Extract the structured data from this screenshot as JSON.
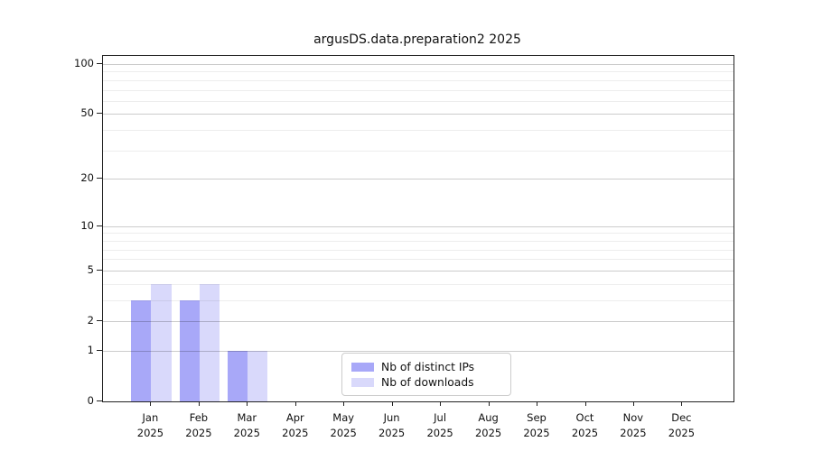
{
  "chart_data": {
    "type": "bar",
    "title": "argusDS.data.preparation2 2025",
    "x": {
      "months": [
        "Jan",
        "Feb",
        "Mar",
        "Apr",
        "May",
        "Jun",
        "Jul",
        "Aug",
        "Sep",
        "Oct",
        "Nov",
        "Dec"
      ],
      "year": "2025"
    },
    "categories": [
      "Jan 2025",
      "Feb 2025",
      "Mar 2025",
      "Apr 2025",
      "May 2025",
      "Jun 2025",
      "Jul 2025",
      "Aug 2025",
      "Sep 2025",
      "Oct 2025",
      "Nov 2025",
      "Dec 2025"
    ],
    "series": [
      {
        "name": "Nb of distinct IPs",
        "color": "#a8a8f8",
        "values": [
          3,
          3,
          1,
          0,
          0,
          0,
          0,
          0,
          0,
          0,
          0,
          0
        ]
      },
      {
        "name": "Nb of downloads",
        "color": "#d9d9fb",
        "values": [
          4,
          4,
          1,
          0,
          0,
          0,
          0,
          0,
          0,
          0,
          0,
          0
        ]
      }
    ],
    "y_axis": {
      "scale": "log1p",
      "ticks": [
        0,
        1,
        2,
        5,
        10,
        20,
        50,
        100
      ],
      "minor_gridlines": [
        3,
        4,
        6,
        7,
        8,
        9,
        30,
        40,
        60,
        70,
        80,
        90
      ],
      "range": [
        0,
        112
      ]
    },
    "xlabel": "",
    "ylabel": "",
    "grid": true,
    "legend_position": "inside-bottom-center"
  }
}
